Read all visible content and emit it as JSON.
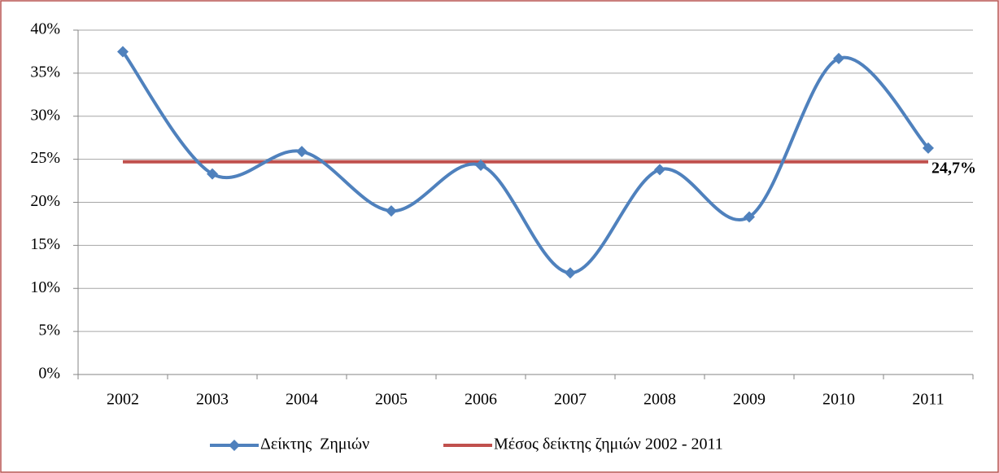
{
  "chart_data": {
    "type": "line",
    "categories": [
      "2002",
      "2003",
      "2004",
      "2005",
      "2006",
      "2007",
      "2008",
      "2009",
      "2010",
      "2011"
    ],
    "series": [
      {
        "name": "Δείκτης  Ζημιών",
        "color": "#4f81bd",
        "smooth": true,
        "marker": "diamond",
        "values": [
          37.5,
          23.3,
          25.9,
          19.0,
          24.3,
          11.8,
          23.8,
          18.3,
          36.7,
          26.3
        ]
      },
      {
        "name": "Μέσος δείκτης ζημιών 2002 - 2011",
        "color": "#c0504d",
        "smooth": false,
        "values": [
          24.7,
          24.7,
          24.7,
          24.7,
          24.7,
          24.7,
          24.7,
          24.7,
          24.7,
          24.7
        ],
        "value_labels": [
          null,
          null,
          null,
          null,
          null,
          null,
          null,
          null,
          null,
          "24,7%"
        ]
      }
    ],
    "ylim": [
      0,
      40
    ],
    "yticks": [
      {
        "value": 0,
        "label": "0%"
      },
      {
        "value": 5,
        "label": "5%"
      },
      {
        "value": 10,
        "label": "10%"
      },
      {
        "value": 15,
        "label": "15%"
      },
      {
        "value": 20,
        "label": "20%"
      },
      {
        "value": 25,
        "label": "25%"
      },
      {
        "value": 30,
        "label": "30%"
      },
      {
        "value": 35,
        "label": "35%"
      },
      {
        "value": 40,
        "label": "40%"
      }
    ],
    "grid": true,
    "legend": "bottom"
  }
}
